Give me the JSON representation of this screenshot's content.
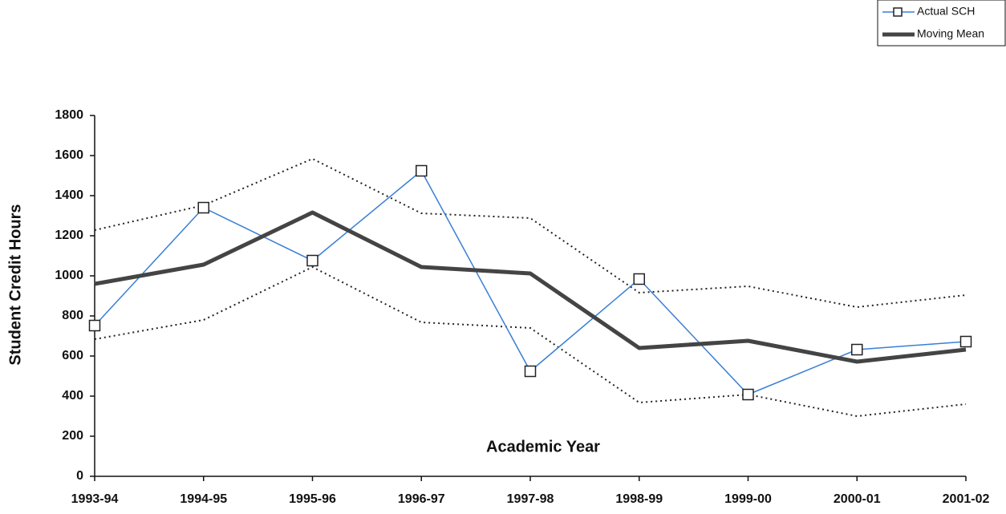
{
  "chart_data": {
    "type": "line",
    "x_label": "Academic Year",
    "y_label": "Student Credit Hours",
    "categories": [
      "1993-94",
      "1994-95",
      "1995-96",
      "1996-97",
      "1997-98",
      "1998-99",
      "1999-00",
      "2000-01",
      "2001-02"
    ],
    "series": [
      {
        "name": "Actual SCH",
        "color": "#3a7fd5",
        "marker": "square",
        "values": [
          752,
          1340,
          1076,
          1524,
          524,
          984,
          408,
          632,
          672
        ]
      },
      {
        "name": "Moving Mean",
        "color": "#444444",
        "values": [
          960,
          1056,
          1316,
          1044,
          1012,
          640,
          676,
          572,
          632
        ]
      },
      {
        "color": "#222222",
        "line_style": "dotted",
        "values": [
          1228,
          1352,
          1584,
          1312,
          1288,
          916,
          948,
          844,
          904
        ]
      },
      {
        "color": "#222222",
        "line_style": "dotted",
        "values": [
          684,
          780,
          1044,
          768,
          740,
          368,
          408,
          300,
          360
        ]
      }
    ],
    "ylim": [
      0,
      1800
    ],
    "yticks": [
      0,
      200,
      400,
      600,
      800,
      1000,
      1200,
      1400,
      1600,
      1800
    ],
    "grid": false,
    "legend": "top-right"
  }
}
